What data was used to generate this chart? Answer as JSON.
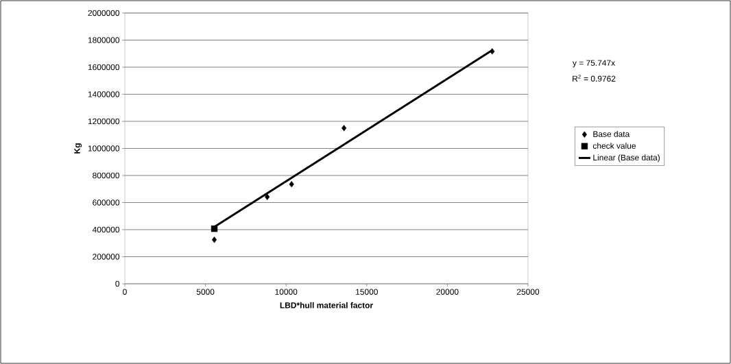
{
  "chart_data": {
    "type": "scatter",
    "xlabel": "LBD*hull material factor",
    "ylabel": "Kg",
    "xlim": [
      0,
      25000
    ],
    "xticks": [
      0,
      5000,
      10000,
      15000,
      20000,
      25000
    ],
    "ylim": [
      0,
      2000000
    ],
    "yticks": [
      0,
      200000,
      400000,
      600000,
      800000,
      1000000,
      1200000,
      1400000,
      1600000,
      1800000,
      2000000
    ],
    "grid": "y",
    "legend": "right",
    "series": [
      {
        "name": "Base data",
        "color": "#000000",
        "marker": "diamond",
        "x": [
          5550,
          8830,
          10340,
          13590,
          22780
        ],
        "values": [
          325000,
          642000,
          736000,
          1150000,
          1717000
        ]
      },
      {
        "name": "check value",
        "color": "#000000",
        "marker": "square",
        "x": [
          5550
        ],
        "values": [
          407000
        ]
      },
      {
        "name": "Linear (Base data)",
        "type": "line",
        "color": "#000000",
        "marker": "none",
        "line_style": "solid",
        "x": [
          5550,
          22780
        ],
        "values": [
          420000,
          1725000
        ]
      }
    ],
    "annotations": [
      "y = 75.747x",
      "R$^{2}$ = 0.9762"
    ]
  }
}
